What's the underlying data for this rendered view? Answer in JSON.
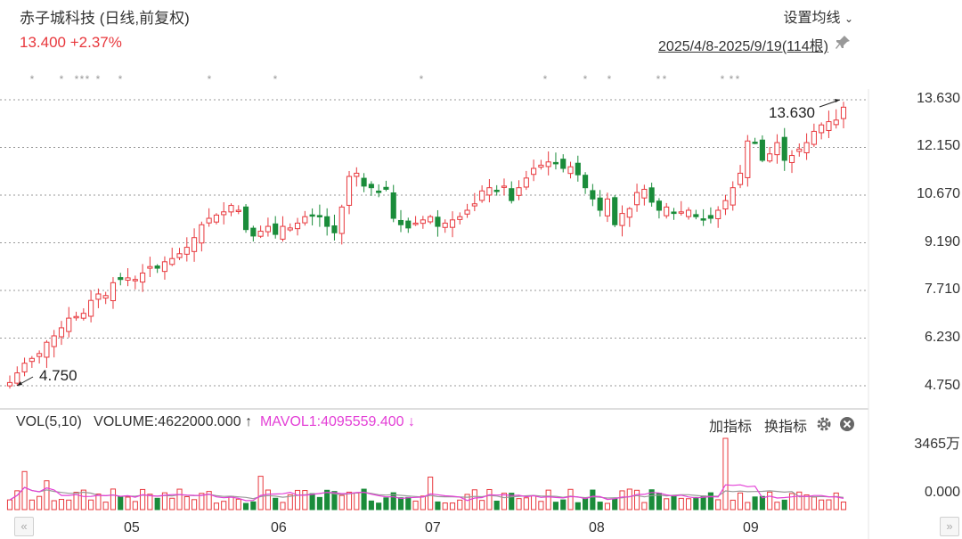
{
  "header": {
    "title": "赤子城科技 (日线,前复权)",
    "price": "13.400",
    "change": "+2.37%",
    "set_ma_label": "设置均线",
    "date_range": "2025/4/8-2025/9/19(114根)"
  },
  "volume_panel": {
    "label": "VOL(5,10)",
    "volume_text": "VOLUME:4622000.000",
    "volume_arrow": "↑",
    "mavol_text": "MAVOL1:4095559.400",
    "mavol_arrow": "↓",
    "add_indicator": "加指标",
    "change_indicator": "换指标",
    "y_max_label": "3465万",
    "y_min_label": "0.000"
  },
  "icons": {
    "pin": "pin-icon",
    "gear": "gear-icon",
    "close": "close-icon",
    "scroll_left": "chevron-double-left-icon",
    "scroll_right": "chevron-double-right-icon"
  },
  "colors": {
    "up": "#e8383d",
    "down": "#1a8c3a",
    "mavol1": "#e33fd6",
    "mavol2": "#999999",
    "grid": "#999999"
  },
  "chart_data": [
    {
      "type": "candlestick",
      "title": "",
      "y_ticks": [
        "13.630",
        "12.150",
        "10.670",
        "9.190",
        "7.710",
        "6.230",
        "4.750"
      ],
      "ylim": [
        4.75,
        13.63
      ],
      "x_ticks": [
        "05",
        "06",
        "07",
        "08",
        "09"
      ],
      "annotations": [
        {
          "text": "4.750",
          "label": "low"
        },
        {
          "text": "13.630",
          "label": "high"
        }
      ],
      "close": [
        4.85,
        5.15,
        5.45,
        5.6,
        5.75,
        6.1,
        6.3,
        6.55,
        6.85,
        6.9,
        7.0,
        7.4,
        7.6,
        7.55,
        7.95,
        8.05,
        8.1,
        8.05,
        8.25,
        8.45,
        8.4,
        8.6,
        8.7,
        8.85,
        9.05,
        9.35,
        9.75,
        9.95,
        10.05,
        10.15,
        10.35,
        10.2,
        9.6,
        9.4,
        9.55,
        9.7,
        9.45,
        9.7,
        9.65,
        9.8,
        10.0,
        10.05,
        10.0,
        9.7,
        9.5,
        10.3,
        11.25,
        11.35,
        10.95,
        10.9,
        10.75,
        10.85,
        9.95,
        9.75,
        9.65,
        9.8,
        9.9,
        10.0,
        9.7,
        9.8,
        9.9,
        10.0,
        10.2,
        10.4,
        10.8,
        10.9,
        10.8,
        10.95,
        10.5,
        10.9,
        11.2,
        11.5,
        11.6,
        11.7,
        11.65,
        11.5,
        11.55,
        11.3,
        10.9,
        10.55,
        10.2,
        10.55,
        9.75,
        10.1,
        10.25,
        10.75,
        10.85,
        10.45,
        10.2,
        10.3,
        10.1,
        10.15,
        10.2,
        10.0,
        9.9,
        9.95,
        10.2,
        10.5,
        10.9,
        11.35,
        12.35,
        12.3,
        11.75,
        11.95,
        12.3,
        11.75,
        11.9,
        12.1,
        12.3,
        12.65,
        12.85,
        12.95,
        13.0,
        13.4
      ],
      "volume_ylim": [
        0,
        3465
      ]
    }
  ]
}
